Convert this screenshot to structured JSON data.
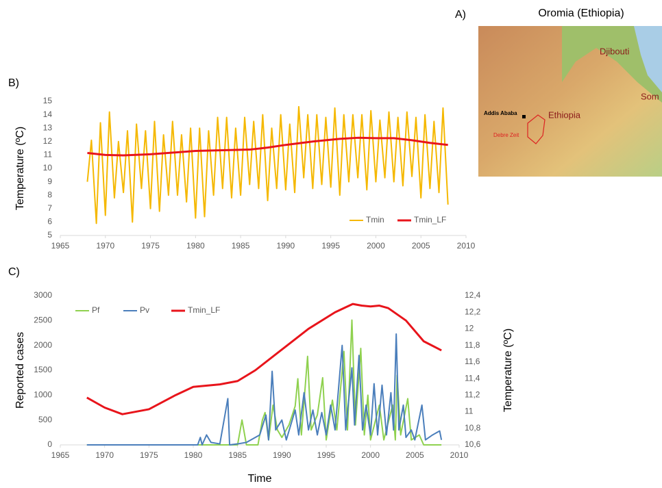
{
  "chart_data": [
    {
      "type": "line",
      "label": "B)",
      "ylabel": "Temperature (ºC)",
      "xlim": [
        1965,
        2010
      ],
      "xticks": [
        1965,
        1970,
        1975,
        1980,
        1985,
        1990,
        1995,
        2000,
        2005,
        2010
      ],
      "ylim": [
        5,
        15
      ],
      "yticks": [
        5,
        6,
        7,
        8,
        9,
        10,
        11,
        12,
        13,
        14,
        15
      ],
      "grid": false,
      "legend": "lower right",
      "series": [
        {
          "name": "Tmin",
          "color": "#f5b800",
          "width": 2,
          "x": [
            1968,
            1968.45,
            1969,
            1969.45,
            1970,
            1970.45,
            1971,
            1971.45,
            1972,
            1972.45,
            1973,
            1973.45,
            1974,
            1974.45,
            1975,
            1975.45,
            1976,
            1976.45,
            1977,
            1977.45,
            1978,
            1978.45,
            1979,
            1979.45,
            1980,
            1980.45,
            1981,
            1981.45,
            1982,
            1982.45,
            1983,
            1983.45,
            1984,
            1984.45,
            1985,
            1985.45,
            1986,
            1986.45,
            1987,
            1987.45,
            1988,
            1988.45,
            1989,
            1989.45,
            1990,
            1990.45,
            1991,
            1991.45,
            1992,
            1992.45,
            1993,
            1993.45,
            1994,
            1994.45,
            1995,
            1995.45,
            1996,
            1996.45,
            1997,
            1997.45,
            1998,
            1998.45,
            1999,
            1999.45,
            2000,
            2000.45,
            2001,
            2001.45,
            2002,
            2002.45,
            2003,
            2003.45,
            2004,
            2004.45,
            2005,
            2005.45,
            2006,
            2006.45,
            2007,
            2007.45,
            2008
          ],
          "values": [
            9.0,
            12.1,
            5.9,
            13.4,
            6.5,
            14.2,
            7.8,
            12.0,
            8.2,
            12.8,
            6.0,
            13.3,
            8.5,
            12.8,
            7.0,
            13.5,
            6.8,
            12.5,
            8.0,
            13.5,
            8.0,
            12.5,
            7.5,
            13.0,
            6.3,
            13.0,
            6.4,
            12.8,
            8.0,
            13.8,
            8.5,
            13.8,
            7.8,
            13.0,
            8.0,
            13.8,
            8.8,
            13.5,
            8.5,
            14.0,
            7.6,
            13.0,
            8.5,
            14.0,
            8.4,
            13.3,
            8.2,
            14.6,
            9.3,
            14.0,
            8.5,
            14.0,
            8.8,
            13.8,
            8.6,
            14.5,
            8.0,
            14.0,
            9.0,
            14.0,
            9.3,
            14.0,
            8.4,
            14.3,
            9.0,
            13.6,
            9.3,
            14.2,
            9.0,
            13.8,
            8.7,
            14.2,
            9.4,
            13.8,
            7.8,
            14.0,
            8.5,
            13.5,
            8.2,
            14.5,
            7.3
          ]
        },
        {
          "name": "Tmin_LF",
          "color": "#e8141b",
          "width": 3,
          "x": [
            1968,
            1970,
            1972,
            1975,
            1978,
            1980,
            1983,
            1986,
            1988,
            1990,
            1993,
            1996,
            1998,
            2000,
            2002,
            2004,
            2006,
            2008
          ],
          "values": [
            11.15,
            11.0,
            10.97,
            11.05,
            11.2,
            11.3,
            11.35,
            11.4,
            11.55,
            11.75,
            12.0,
            12.2,
            12.28,
            12.25,
            12.25,
            12.1,
            11.9,
            11.75
          ]
        }
      ]
    },
    {
      "type": "line",
      "label": "C)",
      "xlabel": "Time",
      "ylabel": "Reported cases",
      "y2label": "Temperature (ºC)",
      "xlim": [
        1965,
        2010
      ],
      "xticks": [
        1965,
        1970,
        1975,
        1980,
        1985,
        1990,
        1995,
        2000,
        2005,
        2010
      ],
      "ylim": [
        0,
        3000
      ],
      "yticks": [
        0,
        500,
        1000,
        1500,
        2000,
        2500,
        3000
      ],
      "y2lim": [
        10.6,
        12.4
      ],
      "y2ticks": [
        {
          "value": 10.6,
          "label": "10,6"
        },
        {
          "value": 10.8,
          "label": "10,8"
        },
        {
          "value": 11,
          "label": "11"
        },
        {
          "value": 11.2,
          "label": "11,2"
        },
        {
          "value": 11.4,
          "label": "11,4"
        },
        {
          "value": 11.6,
          "label": "11,6"
        },
        {
          "value": 11.8,
          "label": "11,8"
        },
        {
          "value": 12,
          "label": "12"
        },
        {
          "value": 12.2,
          "label": "12,2"
        },
        {
          "value": 12.4,
          "label": "12,4"
        }
      ],
      "grid": false,
      "legend": "upper left",
      "series": [
        {
          "name": "Pf",
          "color": "#8fd14f",
          "width": 2,
          "x": [
            1968,
            1985,
            1985.5,
            1986,
            1987.3,
            1987.8,
            1988.1,
            1988.5,
            1989,
            1989.5,
            1990,
            1990.8,
            1991.5,
            1991.8,
            1992.2,
            1992.9,
            1993.3,
            1994,
            1994.6,
            1995,
            1995.7,
            1996.2,
            1997,
            1997.4,
            1997.9,
            1998.3,
            1998.9,
            1999.3,
            1999.7,
            2000,
            2001,
            2001.5,
            2002.5,
            2002.8,
            2003,
            2003.4,
            2004.2,
            2004.6,
            2005.5,
            2006,
            2008
          ],
          "values": [
            0,
            0,
            500,
            0,
            0,
            500,
            650,
            100,
            800,
            300,
            150,
            400,
            780,
            1330,
            200,
            1780,
            300,
            600,
            1350,
            100,
            900,
            300,
            1880,
            300,
            2510,
            400,
            1940,
            200,
            1000,
            100,
            800,
            100,
            800,
            100,
            1400,
            200,
            930,
            100,
            200,
            0,
            0
          ]
        },
        {
          "name": "Pv",
          "color": "#4a7ebb",
          "width": 2,
          "x": [
            1968,
            1980.5,
            1980.8,
            1981,
            1981.5,
            1982,
            1983,
            1983.9,
            1984.1,
            1985,
            1986,
            1987.5,
            1988.2,
            1988.5,
            1988.9,
            1989.3,
            1990,
            1990.5,
            1991.5,
            1991.9,
            1992.5,
            1993,
            1993.5,
            1994,
            1994.5,
            1995,
            1995.5,
            1996,
            1996.8,
            1997.2,
            1997.9,
            1998.2,
            1998.7,
            1999.1,
            1999.5,
            2000,
            2000.4,
            2000.8,
            2001.3,
            2001.8,
            2002.3,
            2002.6,
            2002.9,
            2003.2,
            2003.7,
            2004,
            2004.6,
            2005,
            2005.8,
            2006.2,
            2007,
            2007.8,
            2008
          ],
          "values": [
            0,
            0,
            150,
            0,
            200,
            50,
            20,
            930,
            0,
            20,
            50,
            200,
            600,
            100,
            1480,
            300,
            500,
            100,
            700,
            200,
            1050,
            300,
            700,
            200,
            650,
            200,
            800,
            300,
            2000,
            300,
            1550,
            400,
            1800,
            300,
            800,
            200,
            1230,
            200,
            1200,
            200,
            1050,
            300,
            2230,
            300,
            800,
            150,
            300,
            100,
            800,
            100,
            200,
            280,
            100
          ]
        },
        {
          "name": "Tmin_LF",
          "color": "#e8141b",
          "width": 3,
          "axis": "y2",
          "x": [
            1968,
            1970,
            1972,
            1975,
            1978,
            1980,
            1983,
            1985,
            1987,
            1990,
            1993,
            1996,
            1998,
            1999,
            2000,
            2001,
            2002,
            2004,
            2006,
            2008
          ],
          "values": [
            11.17,
            11.05,
            10.97,
            11.03,
            11.2,
            11.3,
            11.33,
            11.37,
            11.5,
            11.75,
            12.0,
            12.2,
            12.3,
            12.28,
            12.27,
            12.28,
            12.25,
            12.1,
            11.85,
            11.74
          ]
        }
      ]
    }
  ],
  "map": {
    "label": "A)",
    "title": "Oromia (Ethiopia)",
    "country": "Ethiopia",
    "neighbor": "Djibouti",
    "neighbor2": "Som",
    "capital": "Addis Ababa",
    "town": "Debre Zeit"
  }
}
